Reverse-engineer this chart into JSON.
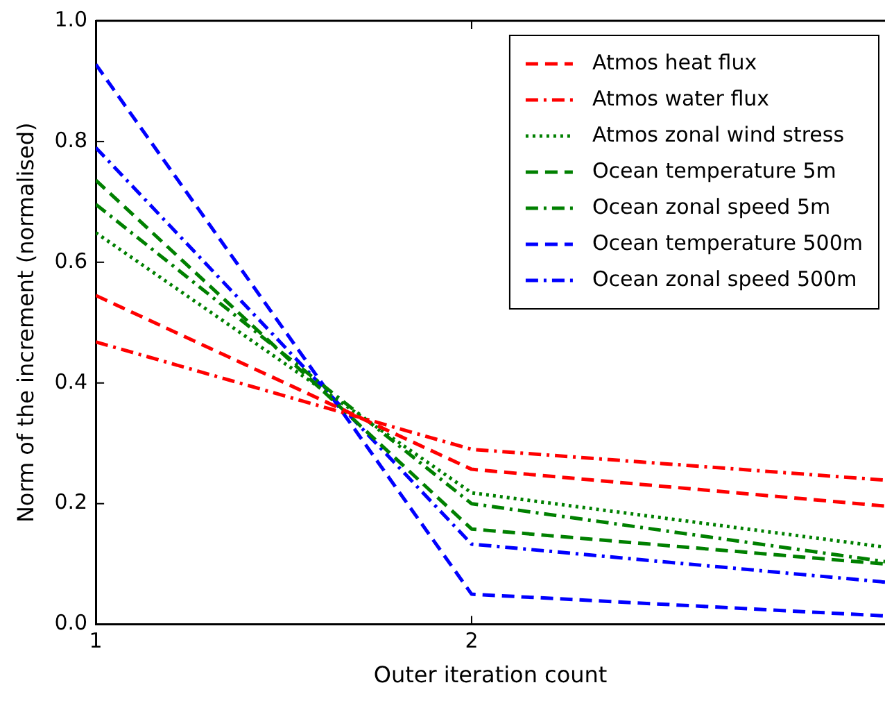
{
  "chart_data": {
    "type": "line",
    "xlabel": "Outer iteration count",
    "ylabel": "Norm of the increment (normalised)",
    "x": [
      1,
      2,
      3.1
    ],
    "xlim": [
      1,
      3.1
    ],
    "xticks": [
      1,
      2
    ],
    "ylim": [
      0,
      1
    ],
    "yticks": [
      {
        "value": 0,
        "label": "0.0"
      },
      0.2,
      0.4,
      0.6,
      0.8,
      {
        "value": 1,
        "label": "1.0"
      }
    ],
    "grid": false,
    "legend": "top right",
    "marker": "none",
    "series": [
      {
        "name": "Atmos heat flux",
        "color": "#ff0000",
        "line_style": "dashed",
        "values": [
          0.545,
          0.257,
          0.196
        ]
      },
      {
        "name": "Atmos water flux",
        "color": "#ff0000",
        "line_style": "dashdot",
        "values": [
          0.468,
          0.29,
          0.239
        ]
      },
      {
        "name": "Atmos zonal wind stress",
        "color": "#008000",
        "line_style": "dotted",
        "values": [
          0.649,
          0.218,
          0.128
        ]
      },
      {
        "name": "Ocean temperature 5m",
        "color": "#008000",
        "line_style": "dashed",
        "values": [
          0.736,
          0.158,
          0.1
        ]
      },
      {
        "name": "Ocean zonal speed 5m",
        "color": "#008000",
        "line_style": "dashdot",
        "values": [
          0.696,
          0.2,
          0.104
        ]
      },
      {
        "name": "Ocean temperature 500m",
        "color": "#0000ff",
        "line_style": "dashed",
        "values": [
          0.928,
          0.05,
          0.014
        ]
      },
      {
        "name": "Ocean zonal speed 500m",
        "color": "#0000ff",
        "line_style": "dashdot",
        "values": [
          0.79,
          0.133,
          0.07
        ]
      }
    ]
  }
}
